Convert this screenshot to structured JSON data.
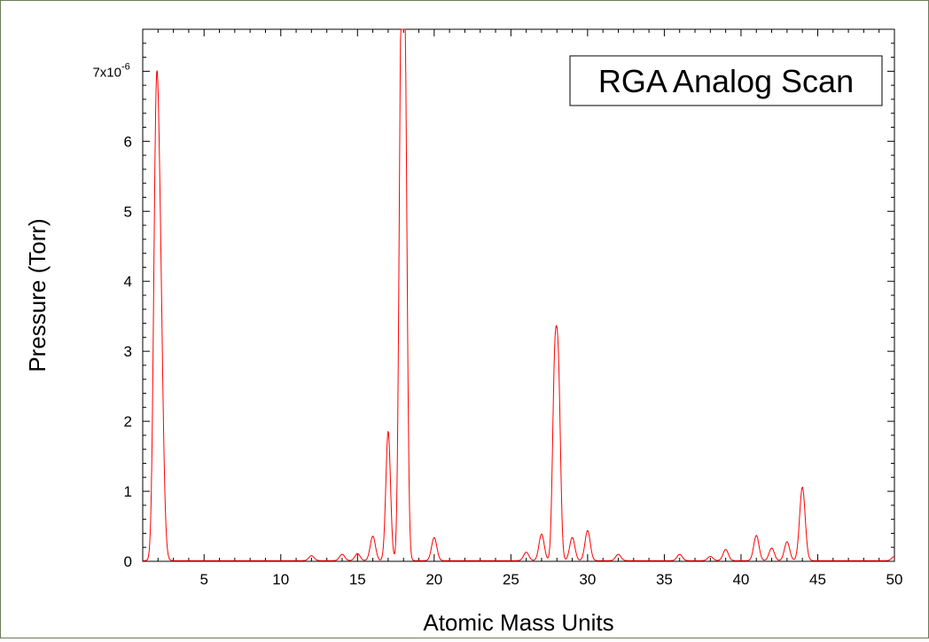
{
  "chart_data": {
    "type": "line",
    "title": "RGA Analog Scan",
    "xlabel": "Atomic Mass Units",
    "ylabel": "Pressure (Torr)",
    "xlim": [
      1,
      50
    ],
    "ylim": [
      0,
      7.6
    ],
    "x_ticks": [
      5,
      10,
      15,
      20,
      25,
      30,
      35,
      40,
      45,
      50
    ],
    "y_ticks": [
      0,
      1,
      2,
      3,
      4,
      5,
      6,
      7
    ],
    "y_tick_labels": [
      "0",
      "1",
      "2",
      "3",
      "4",
      "5",
      "6",
      "7x10"
    ],
    "y_exponent": "-6",
    "grid": false,
    "line_color": "#ff0000",
    "series": [
      {
        "peaks": [
          {
            "x": 1.85,
            "y": 4.55,
            "w": 0.16
          },
          {
            "x": 2.1,
            "y": 4.3,
            "w": 0.2
          },
          {
            "x": 12.0,
            "y": 0.07,
            "w": 0.17
          },
          {
            "x": 14.0,
            "y": 0.09,
            "w": 0.17
          },
          {
            "x": 15.0,
            "y": 0.1,
            "w": 0.17
          },
          {
            "x": 16.0,
            "y": 0.35,
            "w": 0.17
          },
          {
            "x": 17.0,
            "y": 1.85,
            "w": 0.15
          },
          {
            "x": 17.85,
            "y": 7.2,
            "w": 0.14
          },
          {
            "x": 18.1,
            "y": 6.6,
            "w": 0.14
          },
          {
            "x": 20.0,
            "y": 0.33,
            "w": 0.17
          },
          {
            "x": 26.0,
            "y": 0.12,
            "w": 0.17
          },
          {
            "x": 27.0,
            "y": 0.38,
            "w": 0.17
          },
          {
            "x": 27.85,
            "y": 2.55,
            "w": 0.14
          },
          {
            "x": 28.1,
            "y": 2.45,
            "w": 0.14
          },
          {
            "x": 29.0,
            "y": 0.33,
            "w": 0.17
          },
          {
            "x": 30.0,
            "y": 0.43,
            "w": 0.17
          },
          {
            "x": 32.0,
            "y": 0.09,
            "w": 0.17
          },
          {
            "x": 36.0,
            "y": 0.09,
            "w": 0.17
          },
          {
            "x": 38.0,
            "y": 0.06,
            "w": 0.17
          },
          {
            "x": 39.0,
            "y": 0.16,
            "w": 0.17
          },
          {
            "x": 41.0,
            "y": 0.36,
            "w": 0.17
          },
          {
            "x": 42.0,
            "y": 0.18,
            "w": 0.17
          },
          {
            "x": 43.0,
            "y": 0.27,
            "w": 0.17
          },
          {
            "x": 44.0,
            "y": 1.05,
            "w": 0.18
          },
          {
            "x": 50.0,
            "y": 0.06,
            "w": 0.17
          }
        ]
      }
    ]
  }
}
